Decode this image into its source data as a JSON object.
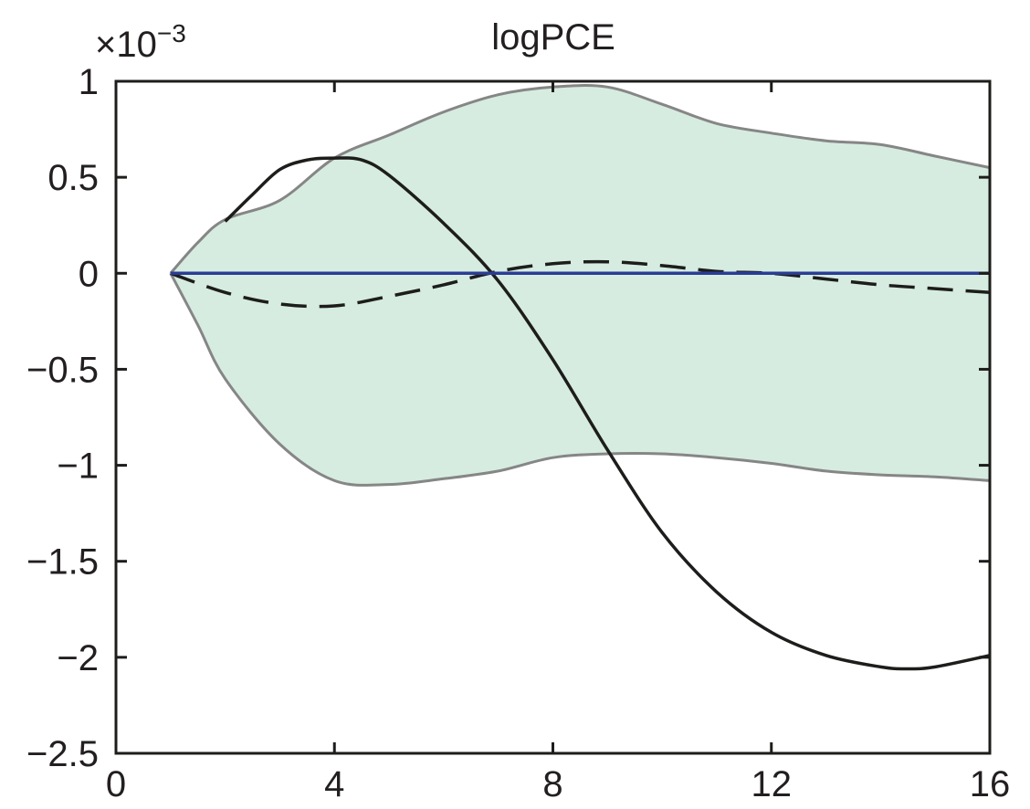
{
  "chart_data": {
    "type": "line",
    "title": "logPCE",
    "xlabel": "",
    "ylabel": "",
    "y_multiplier": {
      "base": "×10",
      "exponent": "−3"
    },
    "xlim": [
      0,
      16
    ],
    "ylim": [
      -2.5,
      1
    ],
    "x_ticks": [
      0,
      4,
      8,
      12,
      16
    ],
    "x_tick_labels": [
      "0",
      "4",
      "8",
      "12",
      "16"
    ],
    "y_ticks": [
      1,
      0.5,
      0,
      -0.5,
      -1,
      -1.5,
      -2,
      -2.5
    ],
    "y_tick_labels": [
      "1",
      "0.5",
      "0",
      "−0.5",
      "−1",
      "−1.5",
      "−2",
      "−2.5"
    ],
    "grid": false,
    "band": {
      "fill": "#d6ece0",
      "edge": "#868686",
      "x": [
        1,
        1.5,
        2,
        3,
        4,
        5,
        6,
        7,
        8,
        9,
        10,
        11,
        12,
        13,
        14,
        15,
        16
      ],
      "upper": [
        0,
        0.16,
        0.28,
        0.38,
        0.6,
        0.72,
        0.84,
        0.93,
        0.97,
        0.97,
        0.88,
        0.78,
        0.73,
        0.69,
        0.67,
        0.61,
        0.55
      ],
      "lower": [
        0,
        -0.27,
        -0.55,
        -0.89,
        -1.08,
        -1.1,
        -1.07,
        -1.03,
        -0.96,
        -0.94,
        -0.94,
        -0.96,
        -0.99,
        -1.03,
        -1.05,
        -1.06,
        -1.08
      ]
    },
    "series": [
      {
        "style": "solid",
        "color": "#1d1d1b",
        "x": [
          2,
          2.5,
          3,
          3.5,
          4,
          4.5,
          5,
          6,
          7,
          8,
          9,
          10,
          11,
          12,
          13,
          14,
          14.5,
          15,
          16
        ],
        "values": [
          0.27,
          0.41,
          0.54,
          0.59,
          0.6,
          0.59,
          0.51,
          0.26,
          -0.04,
          -0.45,
          -0.92,
          -1.35,
          -1.66,
          -1.87,
          -1.99,
          -2.05,
          -2.06,
          -2.05,
          -1.99
        ]
      },
      {
        "style": "dashed",
        "color": "#1d1d1b",
        "x": [
          1,
          2,
          3,
          4,
          5,
          6,
          7,
          8,
          9,
          10,
          11,
          12,
          13,
          14,
          15,
          16
        ],
        "values": [
          0,
          -0.1,
          -0.16,
          -0.17,
          -0.12,
          -0.06,
          0.01,
          0.05,
          0.06,
          0.04,
          0.01,
          0,
          -0.03,
          -0.06,
          -0.08,
          -0.1
        ]
      },
      {
        "style": "solid",
        "color": "#2b3b96",
        "x": [
          1,
          16
        ],
        "values": [
          0,
          0
        ]
      }
    ]
  }
}
